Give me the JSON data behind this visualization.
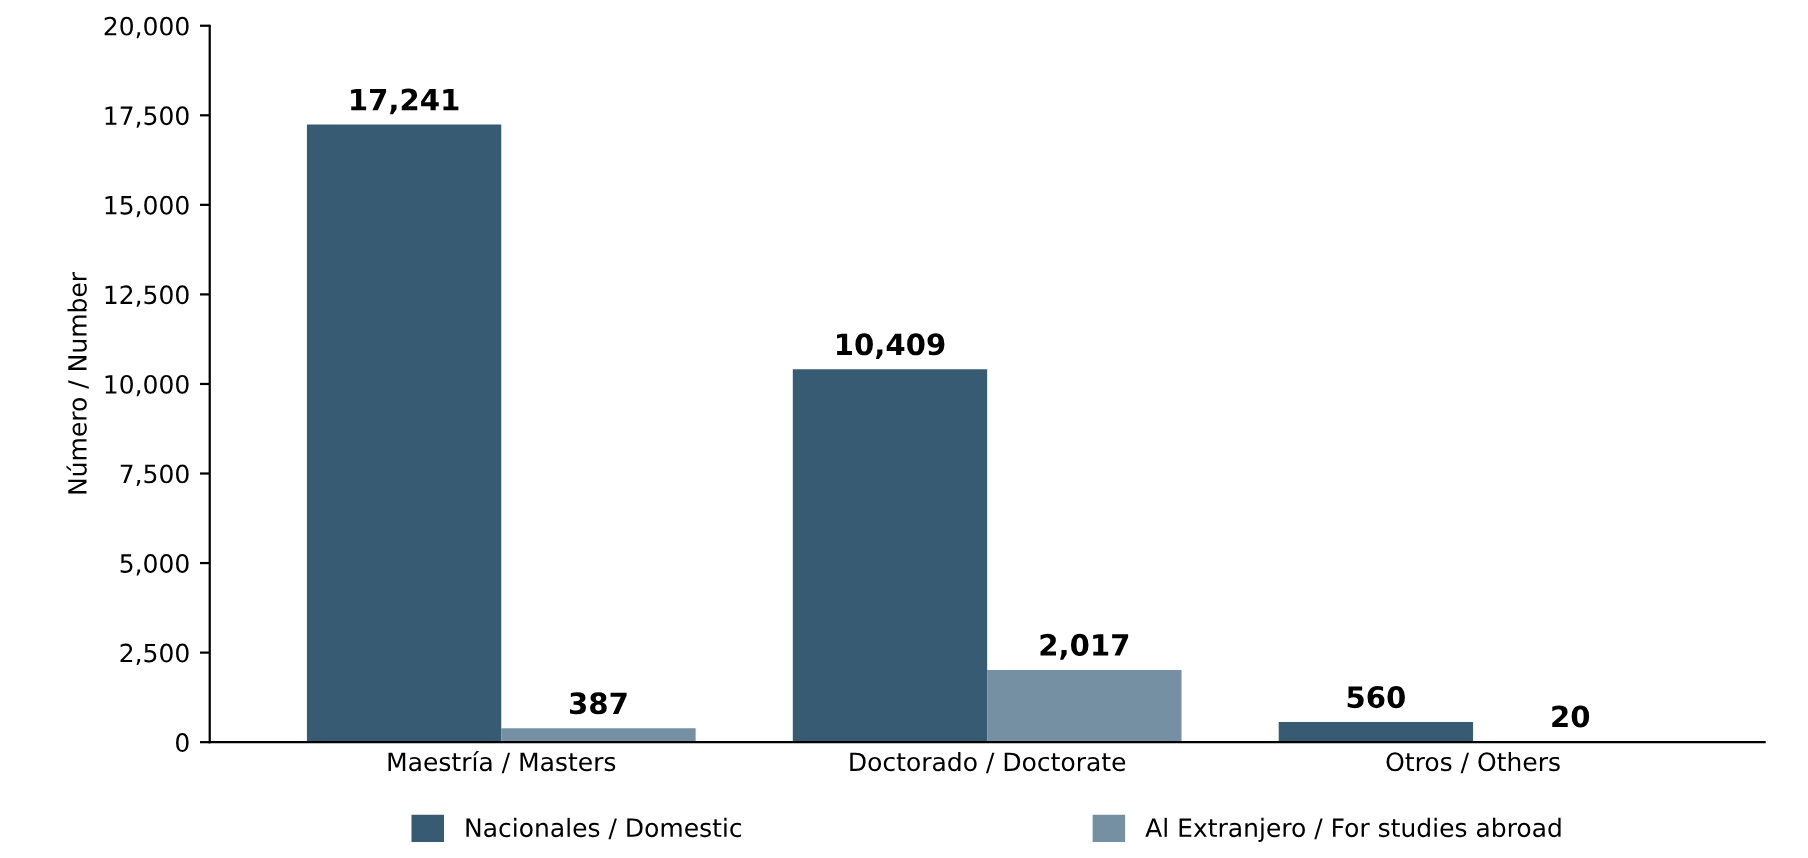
{
  "chart_data": {
    "type": "bar",
    "ylabel": "Número / Number",
    "categories": [
      "Maestría / Masters",
      "Doctorado / Doctorate",
      "Otros / Others"
    ],
    "series": [
      {
        "name": "Nacionales / Domestic",
        "color": "#365b72",
        "values": [
          17241,
          10409,
          560
        ]
      },
      {
        "name": "Al Extranjero / For studies abroad",
        "color": "#7590a3",
        "values": [
          387,
          2017,
          20
        ]
      }
    ],
    "ylim": [
      0,
      20000
    ],
    "yticks": [
      {
        "value": 0,
        "label": "0"
      },
      {
        "value": 2500,
        "label": "2,500"
      },
      {
        "value": 5000,
        "label": "5,000"
      },
      {
        "value": 7500,
        "label": "7,500"
      },
      {
        "value": 10000,
        "label": "10,000"
      },
      {
        "value": 12500,
        "label": "12,500"
      },
      {
        "value": 15000,
        "label": "15,000"
      },
      {
        "value": 17500,
        "label": "17,500"
      },
      {
        "value": 20000,
        "label": "20,000"
      }
    ],
    "value_labels": [
      [
        "17,241",
        "10,409",
        "560"
      ],
      [
        "387",
        "2,017",
        "20"
      ]
    ],
    "grid": false,
    "legend": "bottom"
  }
}
